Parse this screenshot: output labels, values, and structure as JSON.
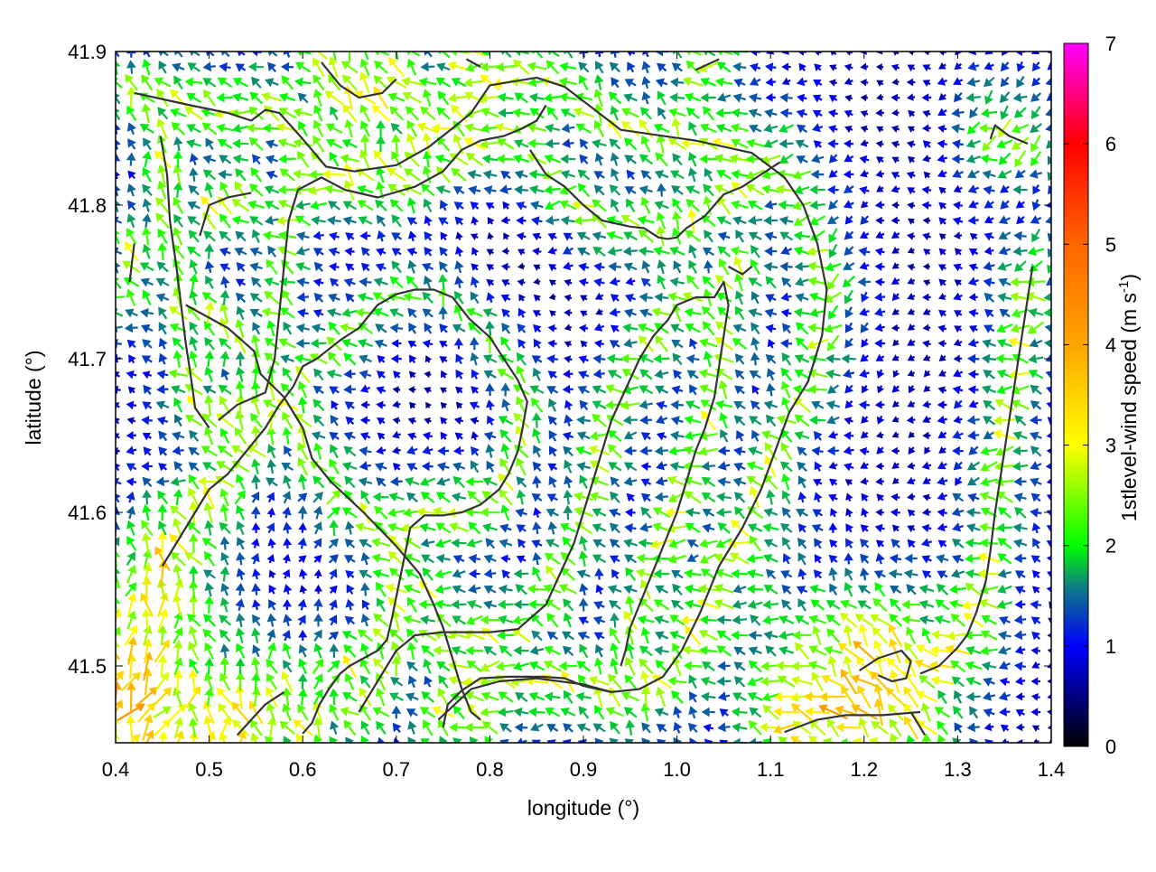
{
  "chart_data": {
    "type": "quiver",
    "xlabel": "longitude (°)",
    "ylabel": "latitude (°)",
    "colorbar_label_main": "1stlevel-wind speed (m s",
    "colorbar_label_sup": "-1",
    "colorbar_label_close": ")",
    "xlim": [
      0.4,
      1.4
    ],
    "ylim": [
      41.45,
      41.9
    ],
    "xticks": [
      {
        "v": 0.4,
        "label": "0.4"
      },
      {
        "v": 0.5,
        "label": "0.5"
      },
      {
        "v": 0.6,
        "label": "0.6"
      },
      {
        "v": 0.7,
        "label": "0.7"
      },
      {
        "v": 0.8,
        "label": "0.8"
      },
      {
        "v": 0.9,
        "label": "0.9"
      },
      {
        "v": 1.0,
        "label": "1.0"
      },
      {
        "v": 1.1,
        "label": "1.1"
      },
      {
        "v": 1.2,
        "label": "1.2"
      },
      {
        "v": 1.3,
        "label": "1.3"
      },
      {
        "v": 1.4,
        "label": "1.4"
      }
    ],
    "yticks": [
      {
        "v": 41.5,
        "label": "41.5"
      },
      {
        "v": 41.6,
        "label": "41.6"
      },
      {
        "v": 41.7,
        "label": "41.7"
      },
      {
        "v": 41.8,
        "label": "41.8"
      },
      {
        "v": 41.9,
        "label": "41.9"
      }
    ],
    "colorbar": {
      "range": [
        0,
        7
      ],
      "ticks": [
        {
          "v": 0,
          "label": "0"
        },
        {
          "v": 1,
          "label": "1"
        },
        {
          "v": 2,
          "label": "2"
        },
        {
          "v": 3,
          "label": "3"
        },
        {
          "v": 4,
          "label": "4"
        },
        {
          "v": 5,
          "label": "5"
        },
        {
          "v": 6,
          "label": "6"
        },
        {
          "v": 7,
          "label": "7"
        }
      ],
      "stops": [
        {
          "v": 0,
          "color": "#000000"
        },
        {
          "v": 1,
          "color": "#0000ff"
        },
        {
          "v": 1.6,
          "color": "#0f7f7f"
        },
        {
          "v": 2,
          "color": "#00ff00"
        },
        {
          "v": 3,
          "color": "#ffff00"
        },
        {
          "v": 4,
          "color": "#ffa500"
        },
        {
          "v": 5,
          "color": "#ff6600"
        },
        {
          "v": 6,
          "color": "#ff0000"
        },
        {
          "v": 7,
          "color": "#ff00ff"
        }
      ]
    },
    "grid": true,
    "field_grid": {
      "x0": 0.4,
      "x1": 1.4,
      "nx": 60,
      "y0": 41.45,
      "y1": 41.9,
      "ny": 45
    },
    "contours": [
      [
        [
          0.42,
          41.873
        ],
        [
          0.48,
          41.865
        ],
        [
          0.52,
          41.86
        ],
        [
          0.545,
          41.855
        ],
        [
          0.56,
          41.862
        ],
        [
          0.575,
          41.86
        ],
        [
          0.6,
          41.843
        ],
        [
          0.625,
          41.825
        ],
        [
          0.655,
          41.822
        ],
        [
          0.7,
          41.826
        ],
        [
          0.735,
          41.838
        ],
        [
          0.76,
          41.85
        ],
        [
          0.78,
          41.86
        ],
        [
          0.8,
          41.878
        ],
        [
          0.85,
          41.883
        ],
        [
          0.88,
          41.877
        ],
        [
          0.91,
          41.863
        ],
        [
          0.94,
          41.849
        ],
        [
          1.02,
          41.842
        ],
        [
          1.08,
          41.834
        ],
        [
          1.115,
          41.818
        ],
        [
          1.135,
          41.8
        ],
        [
          1.15,
          41.775
        ],
        [
          1.16,
          41.745
        ],
        [
          1.155,
          41.715
        ],
        [
          1.14,
          41.685
        ],
        [
          1.12,
          41.665
        ],
        [
          1.105,
          41.64
        ],
        [
          1.09,
          41.615
        ],
        [
          1.07,
          41.59
        ],
        [
          1.045,
          41.565
        ],
        [
          1.025,
          41.535
        ],
        [
          1.005,
          41.51
        ],
        [
          0.985,
          41.493
        ],
        [
          0.96,
          41.485
        ],
        [
          0.93,
          41.483
        ],
        [
          0.9,
          41.487
        ],
        [
          0.88,
          41.492
        ],
        [
          0.855,
          41.493
        ],
        [
          0.82,
          41.493
        ],
        [
          0.79,
          41.492
        ],
        [
          0.77,
          41.484
        ],
        [
          0.755,
          41.475
        ],
        [
          0.75,
          41.46
        ]
      ],
      [
        [
          0.745,
          41.465
        ],
        [
          0.78,
          41.485
        ],
        [
          0.81,
          41.49
        ],
        [
          0.85,
          41.492
        ],
        [
          0.9,
          41.488
        ],
        [
          0.93,
          41.483
        ]
      ],
      [
        [
          0.475,
          41.735
        ],
        [
          0.52,
          41.72
        ],
        [
          0.548,
          41.705
        ],
        [
          0.555,
          41.69
        ],
        [
          0.58,
          41.675
        ],
        [
          0.6,
          41.655
        ],
        [
          0.61,
          41.635
        ],
        [
          0.63,
          41.62
        ],
        [
          0.665,
          41.6
        ],
        [
          0.7,
          41.578
        ],
        [
          0.725,
          41.56
        ],
        [
          0.74,
          41.54
        ],
        [
          0.75,
          41.525
        ],
        [
          0.76,
          41.505
        ],
        [
          0.77,
          41.485
        ],
        [
          0.78,
          41.47
        ],
        [
          0.79,
          41.465
        ]
      ],
      [
        [
          0.51,
          41.66
        ],
        [
          0.53,
          41.67
        ],
        [
          0.56,
          41.678
        ],
        [
          0.57,
          41.7
        ],
        [
          0.575,
          41.73
        ],
        [
          0.58,
          41.76
        ],
        [
          0.585,
          41.79
        ],
        [
          0.595,
          41.81
        ],
        [
          0.62,
          41.818
        ],
        [
          0.645,
          41.81
        ],
        [
          0.68,
          41.805
        ],
        [
          0.72,
          41.812
        ],
        [
          0.75,
          41.822
        ],
        [
          0.77,
          41.836
        ],
        [
          0.79,
          41.842
        ],
        [
          0.815,
          41.845
        ],
        [
          0.835,
          41.85
        ],
        [
          0.85,
          41.855
        ],
        [
          0.86,
          41.865
        ]
      ],
      [
        [
          0.5,
          41.655
        ],
        [
          0.485,
          41.668
        ],
        [
          0.48,
          41.69
        ],
        [
          0.475,
          41.71
        ],
        [
          0.47,
          41.735
        ],
        [
          0.465,
          41.76
        ],
        [
          0.458,
          41.79
        ],
        [
          0.455,
          41.82
        ],
        [
          0.448,
          41.845
        ]
      ],
      [
        [
          0.49,
          41.78
        ],
        [
          0.5,
          41.8
        ],
        [
          0.52,
          41.805
        ],
        [
          0.545,
          41.808
        ]
      ],
      [
        [
          0.415,
          41.75
        ],
        [
          0.42,
          41.775
        ]
      ],
      [
        [
          0.45,
          41.565
        ],
        [
          0.47,
          41.585
        ],
        [
          0.49,
          41.605
        ],
        [
          0.5,
          41.615
        ],
        [
          0.52,
          41.625
        ],
        [
          0.54,
          41.64
        ],
        [
          0.56,
          41.655
        ],
        [
          0.575,
          41.67
        ],
        [
          0.59,
          41.682
        ],
        [
          0.6,
          41.695
        ],
        [
          0.615,
          41.7
        ],
        [
          0.64,
          41.712
        ],
        [
          0.66,
          41.72
        ],
        [
          0.68,
          41.735
        ],
        [
          0.7,
          41.742
        ],
        [
          0.72,
          41.745
        ],
        [
          0.74,
          41.745
        ],
        [
          0.76,
          41.74
        ],
        [
          0.778,
          41.726
        ],
        [
          0.8,
          41.714
        ],
        [
          0.815,
          41.7
        ],
        [
          0.83,
          41.686
        ],
        [
          0.84,
          41.672
        ],
        [
          0.835,
          41.655
        ],
        [
          0.83,
          41.64
        ],
        [
          0.82,
          41.625
        ],
        [
          0.81,
          41.615
        ],
        [
          0.79,
          41.605
        ],
        [
          0.77,
          41.6
        ],
        [
          0.75,
          41.598
        ],
        [
          0.73,
          41.598
        ],
        [
          0.715,
          41.59
        ],
        [
          0.71,
          41.575
        ],
        [
          0.705,
          41.56
        ],
        [
          0.7,
          41.545
        ],
        [
          0.695,
          41.53
        ],
        [
          0.69,
          41.517
        ],
        [
          0.68,
          41.51
        ],
        [
          0.665,
          41.505
        ],
        [
          0.65,
          41.5
        ],
        [
          0.64,
          41.495
        ],
        [
          0.628,
          41.485
        ],
        [
          0.618,
          41.475
        ],
        [
          0.61,
          41.463
        ],
        [
          0.6,
          41.456
        ]
      ],
      [
        [
          0.58,
          41.483
        ],
        [
          0.56,
          41.475
        ],
        [
          0.545,
          41.465
        ],
        [
          0.53,
          41.455
        ]
      ],
      [
        [
          0.66,
          41.47
        ],
        [
          0.68,
          41.49
        ],
        [
          0.7,
          41.51
        ],
        [
          0.72,
          41.52
        ],
        [
          0.75,
          41.522
        ],
        [
          0.8,
          41.522
        ],
        [
          0.83,
          41.524
        ],
        [
          0.86,
          41.54
        ],
        [
          0.875,
          41.56
        ],
        [
          0.89,
          41.58
        ],
        [
          0.9,
          41.6
        ],
        [
          0.91,
          41.62
        ],
        [
          0.92,
          41.64
        ],
        [
          0.93,
          41.66
        ],
        [
          0.945,
          41.68
        ],
        [
          0.96,
          41.7
        ],
        [
          0.975,
          41.715
        ],
        [
          0.99,
          41.725
        ],
        [
          1.0,
          41.735
        ],
        [
          1.02,
          41.74
        ],
        [
          1.04,
          41.74
        ],
        [
          1.05,
          41.75
        ],
        [
          1.055,
          41.735
        ],
        [
          1.05,
          41.715
        ],
        [
          1.045,
          41.695
        ],
        [
          1.04,
          41.675
        ],
        [
          1.03,
          41.655
        ],
        [
          1.02,
          41.64
        ],
        [
          1.01,
          41.62
        ],
        [
          1.0,
          41.6
        ],
        [
          0.99,
          41.585
        ],
        [
          0.98,
          41.57
        ],
        [
          0.97,
          41.555
        ],
        [
          0.96,
          41.54
        ],
        [
          0.95,
          41.525
        ],
        [
          0.945,
          41.51
        ],
        [
          0.94,
          41.5
        ]
      ],
      [
        [
          0.843,
          41.836
        ],
        [
          0.86,
          41.82
        ],
        [
          0.88,
          41.812
        ],
        [
          0.9,
          41.8
        ],
        [
          0.92,
          41.79
        ],
        [
          0.95,
          41.786
        ],
        [
          0.965,
          41.785
        ],
        [
          0.98,
          41.779
        ],
        [
          0.99,
          41.778
        ],
        [
          1.0,
          41.779
        ],
        [
          1.01,
          41.785
        ],
        [
          1.03,
          41.793
        ],
        [
          1.05,
          41.807
        ],
        [
          1.07,
          41.812
        ],
        [
          1.09,
          41.82
        ],
        [
          1.11,
          41.828
        ]
      ],
      [
        [
          1.055,
          41.76
        ],
        [
          1.07,
          41.755
        ],
        [
          1.08,
          41.76
        ]
      ],
      [
        [
          1.26,
          41.495
        ],
        [
          1.28,
          41.5
        ],
        [
          1.3,
          41.512
        ],
        [
          1.31,
          41.52
        ],
        [
          1.32,
          41.535
        ],
        [
          1.33,
          41.555
        ],
        [
          1.335,
          41.575
        ],
        [
          1.34,
          41.6
        ],
        [
          1.345,
          41.62
        ],
        [
          1.35,
          41.64
        ],
        [
          1.355,
          41.66
        ],
        [
          1.36,
          41.68
        ],
        [
          1.365,
          41.7
        ],
        [
          1.37,
          41.72
        ],
        [
          1.375,
          41.74
        ],
        [
          1.38,
          41.76
        ]
      ],
      [
        [
          1.335,
          41.843
        ],
        [
          1.34,
          41.852
        ],
        [
          1.355,
          41.845
        ],
        [
          1.375,
          41.84
        ]
      ],
      [
        [
          1.195,
          41.497
        ],
        [
          1.215,
          41.505
        ],
        [
          1.24,
          41.51
        ],
        [
          1.25,
          41.503
        ],
        [
          1.245,
          41.492
        ],
        [
          1.23,
          41.49
        ],
        [
          1.215,
          41.494
        ]
      ],
      [
        [
          1.115,
          41.457
        ],
        [
          1.15,
          41.465
        ],
        [
          1.18,
          41.468
        ],
        [
          1.22,
          41.468
        ],
        [
          1.26,
          41.47
        ]
      ],
      [
        [
          1.25,
          41.47
        ],
        [
          1.265,
          41.455
        ]
      ],
      [
        [
          0.62,
          41.893
        ],
        [
          0.64,
          41.878
        ],
        [
          0.66,
          41.87
        ],
        [
          0.685,
          41.873
        ],
        [
          0.7,
          41.882
        ]
      ],
      [
        [
          0.775,
          41.895
        ],
        [
          0.79,
          41.89
        ]
      ],
      [
        [
          1.02,
          41.888
        ],
        [
          1.045,
          41.895
        ]
      ]
    ]
  }
}
